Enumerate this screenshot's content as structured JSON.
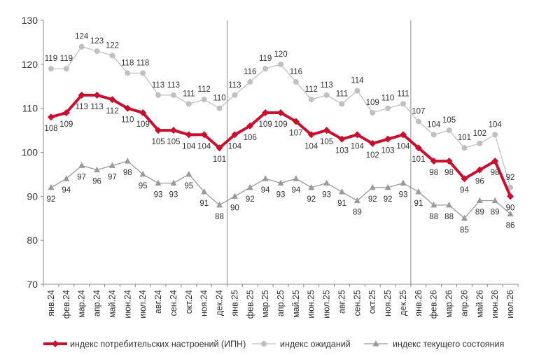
{
  "chart_data": {
    "type": "line",
    "title": "",
    "xlabel": "",
    "ylabel": "",
    "ylim": [
      70,
      130
    ],
    "yticks": [
      70,
      80,
      90,
      100,
      110,
      120,
      130
    ],
    "grid": false,
    "legend_position": "bottom",
    "categories": [
      "янв.24",
      "фев.24",
      "мар.24",
      "апр.24",
      "май.24",
      "июн.24",
      "июл.24",
      "авг.24",
      "сен.24",
      "окт.24",
      "ноя.24",
      "дек.24",
      "янв.25",
      "фев.25",
      "мар.25",
      "апр.25",
      "май.25",
      "июн.25",
      "июл.25",
      "авг.25",
      "сен.25",
      "окт.25",
      "ноя.25",
      "дек.25",
      "янв.26",
      "фев.26",
      "мар.26",
      "апр.26",
      "май.26",
      "июн.26",
      "июл.26"
    ],
    "series": [
      {
        "name": "индекс потребительских настроений (ИПН)",
        "color": "#c8102e",
        "marker": "diamond",
        "values": [
          108,
          109,
          113,
          113,
          112,
          110,
          109,
          105,
          105,
          104,
          104,
          101,
          104,
          106,
          109,
          109,
          107,
          104,
          105,
          103,
          104,
          102,
          103,
          104,
          101,
          98,
          98,
          94,
          96,
          98,
          90
        ],
        "labels": [
          "108",
          "109",
          "113",
          "113",
          "112",
          "110",
          "109",
          "105",
          "105",
          "104",
          "104",
          "101",
          "104",
          "106",
          "109",
          "109",
          "107",
          "104",
          "105",
          "103",
          "104",
          "102",
          "103",
          "104",
          "101",
          "98",
          "98",
          "94",
          "96",
          "98",
          "90"
        ]
      },
      {
        "name": "индекс ожиданий",
        "color": "#c0c0c0",
        "marker": "circle",
        "values": [
          119,
          119,
          124,
          123,
          122,
          118,
          118,
          113,
          113,
          111,
          112,
          110,
          113,
          116,
          119,
          120,
          116,
          112,
          113,
          111,
          114,
          109,
          110,
          111,
          107,
          104,
          105,
          101,
          102,
          104,
          92
        ],
        "labels": [
          "119",
          "119",
          "124",
          "123",
          "122",
          "118",
          "118",
          "113",
          "113",
          "111",
          "112",
          "110",
          "113",
          "116",
          "119",
          "120",
          "116",
          "112",
          "113",
          "111",
          "114",
          "109",
          "110",
          "111",
          "107",
          "104",
          "105",
          "101",
          "102",
          "104",
          "92"
        ]
      },
      {
        "name": "индекс текущего состояния",
        "color": "#9a9a9a",
        "marker": "triangle",
        "values": [
          92,
          94,
          97,
          96,
          97,
          98,
          95,
          93,
          93,
          95,
          91,
          88,
          90,
          92,
          94,
          93,
          94,
          92,
          93,
          91,
          89,
          92,
          92,
          93,
          91,
          88,
          88,
          85,
          89,
          89,
          86
        ],
        "labels": [
          "92",
          "94",
          "97",
          "96",
          "97",
          "98",
          "95",
          "93",
          "93",
          "95",
          "91",
          "88",
          "90",
          "92",
          "94",
          "93",
          "94",
          "92",
          "93",
          "91",
          "89",
          "92",
          "92",
          "93",
          "91",
          "88",
          "88",
          "85",
          "89",
          "89",
          "86"
        ]
      }
    ],
    "year_separators_after": [
      "дек.24",
      "дек.25"
    ]
  }
}
